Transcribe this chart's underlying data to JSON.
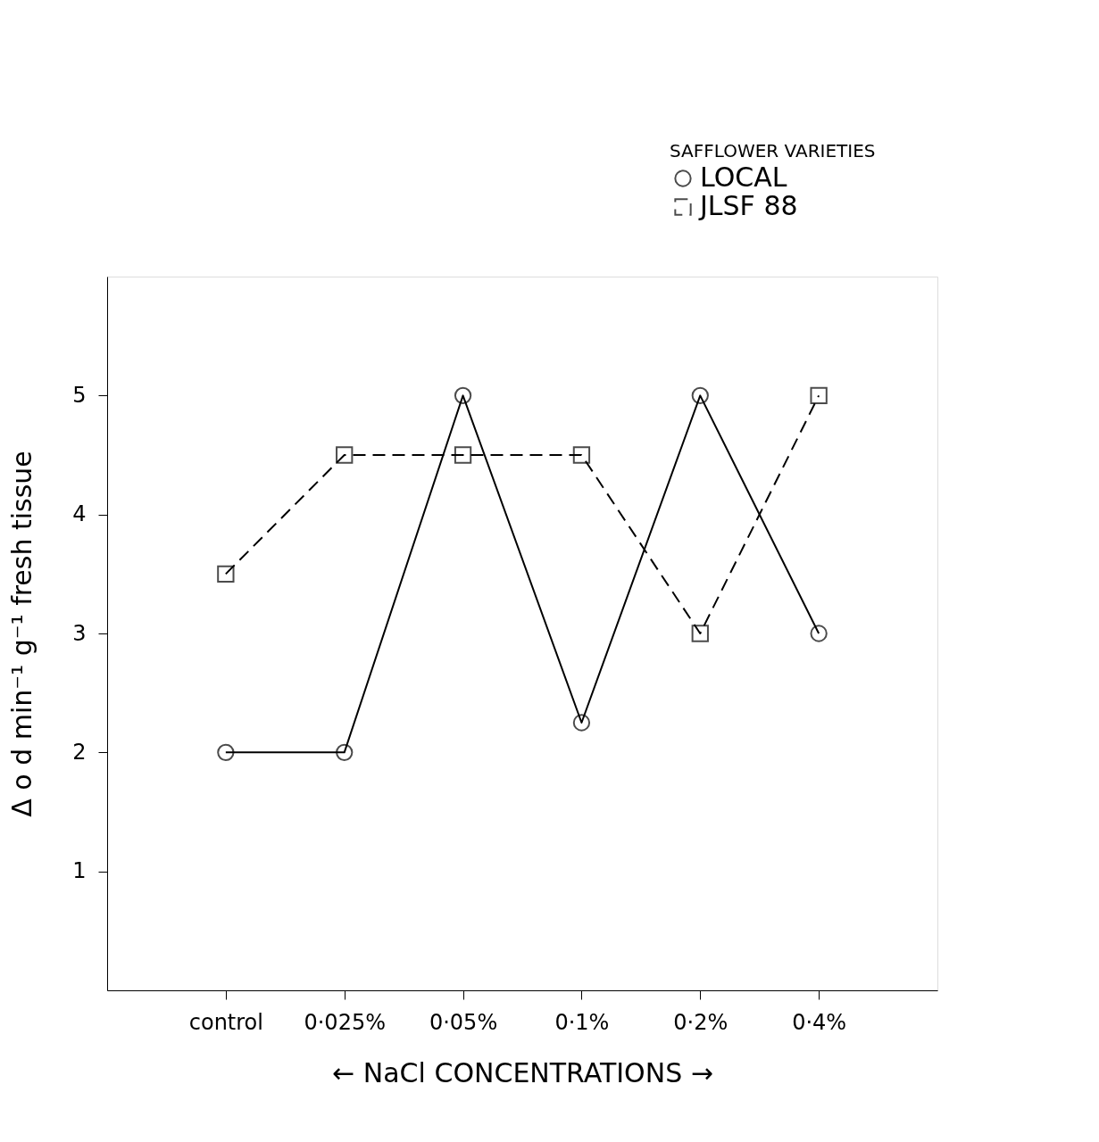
{
  "chart_data": {
    "type": "line",
    "legend_title": "SAFFLOWER VARIETIES",
    "ylabel": "Δ o d min⁻¹ g⁻¹   fresh tissue",
    "xlabel": "← NaCl CONCENTRATIONS →",
    "categories": [
      "control",
      "0·025%",
      "0·05%",
      "0·1%",
      "0·2%",
      "0·4%"
    ],
    "series": [
      {
        "name": "LOCAL",
        "color": "#000000",
        "marker": "circle",
        "line_style": "solid",
        "values": [
          2,
          2,
          5,
          2.25,
          5,
          3
        ]
      },
      {
        "name": "JLSF 88",
        "color": "#000000",
        "marker": "square",
        "line_style": "dashed",
        "values": [
          3.5,
          4.5,
          4.5,
          4.5,
          3,
          5
        ]
      }
    ],
    "ylim": [
      0,
      6
    ],
    "yticks": [
      1,
      2,
      3,
      4,
      5
    ],
    "grid": false,
    "legend": "top right"
  }
}
